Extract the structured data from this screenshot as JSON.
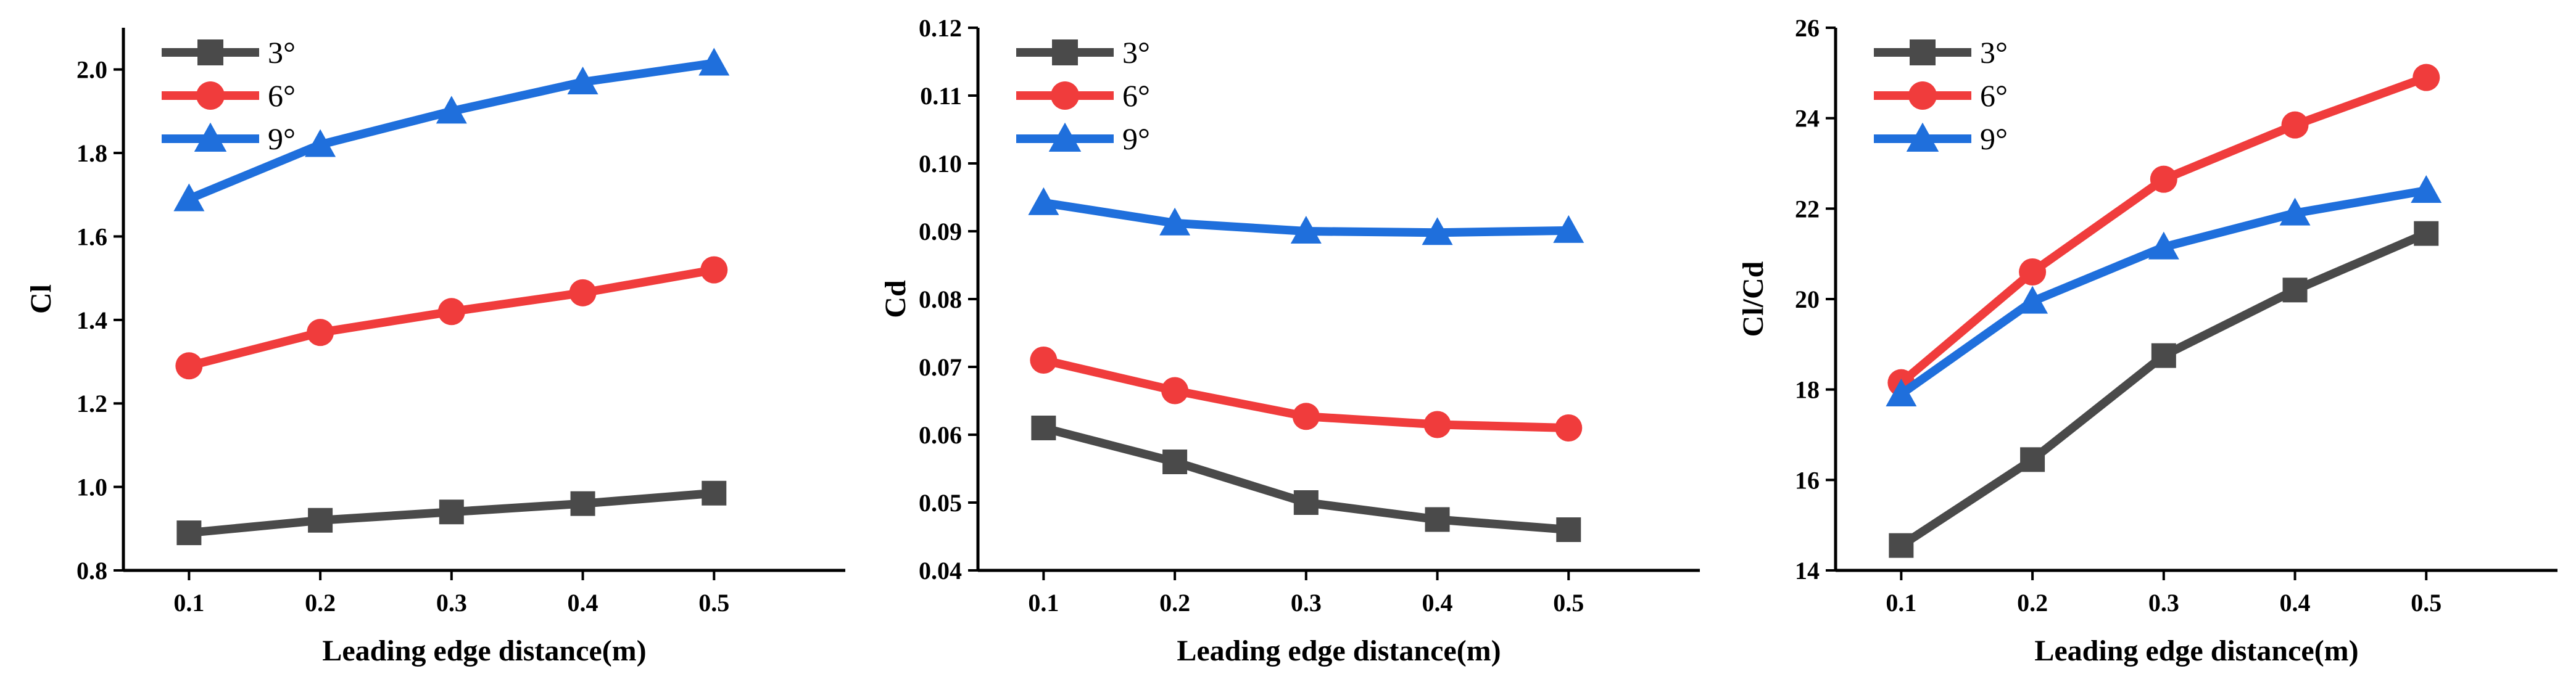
{
  "chart_data": [
    {
      "type": "line",
      "title": "",
      "xlabel": "Leading edge distance(m)",
      "ylabel": "Cl",
      "x": [
        0.1,
        0.2,
        0.3,
        0.4,
        0.5
      ],
      "xticks": [
        "0.1",
        "0.2",
        "0.3",
        "0.4",
        "0.5"
      ],
      "xlim": [
        0.05,
        0.6
      ],
      "ylim": [
        0.8,
        2.1
      ],
      "yticks": [
        "0.8",
        "1.0",
        "1.2",
        "1.4",
        "1.6",
        "1.8",
        "2.0"
      ],
      "ytick_values": [
        0.8,
        1.0,
        1.2,
        1.4,
        1.6,
        1.8,
        2.0
      ],
      "grid": false,
      "legend_position": "top-left",
      "series": [
        {
          "name": "3°",
          "color": "#4a4a4a",
          "marker": "square",
          "values": [
            0.89,
            0.92,
            0.94,
            0.96,
            0.985
          ]
        },
        {
          "name": "6°",
          "color": "#f03c3c",
          "marker": "circle",
          "values": [
            1.29,
            1.37,
            1.42,
            1.465,
            1.52
          ]
        },
        {
          "name": "9°",
          "color": "#1f6fdc",
          "marker": "triangle",
          "values": [
            1.69,
            1.82,
            1.9,
            1.97,
            2.015
          ]
        }
      ]
    },
    {
      "type": "line",
      "title": "",
      "xlabel": "Leading edge distance(m)",
      "ylabel": "Cd",
      "x": [
        0.1,
        0.2,
        0.3,
        0.4,
        0.5
      ],
      "xticks": [
        "0.1",
        "0.2",
        "0.3",
        "0.4",
        "0.5"
      ],
      "xlim": [
        0.05,
        0.6
      ],
      "ylim": [
        0.04,
        0.12
      ],
      "yticks": [
        "0.04",
        "0.05",
        "0.06",
        "0.07",
        "0.08",
        "0.09",
        "0.10",
        "0.11",
        "0.12"
      ],
      "ytick_values": [
        0.04,
        0.05,
        0.06,
        0.07,
        0.08,
        0.09,
        0.1,
        0.11,
        0.12
      ],
      "grid": false,
      "legend_position": "top-left",
      "series": [
        {
          "name": "3°",
          "color": "#4a4a4a",
          "marker": "square",
          "values": [
            0.061,
            0.056,
            0.05,
            0.0475,
            0.046
          ]
        },
        {
          "name": "6°",
          "color": "#f03c3c",
          "marker": "circle",
          "values": [
            0.071,
            0.0665,
            0.0627,
            0.0615,
            0.061
          ]
        },
        {
          "name": "9°",
          "color": "#1f6fdc",
          "marker": "triangle",
          "values": [
            0.0942,
            0.0912,
            0.09,
            0.0898,
            0.0901
          ]
        }
      ]
    },
    {
      "type": "line",
      "title": "",
      "xlabel": "Leading edge distance(m)",
      "ylabel": "Cl/Cd",
      "x": [
        0.1,
        0.2,
        0.3,
        0.4,
        0.5
      ],
      "xticks": [
        "0.1",
        "0.2",
        "0.3",
        "0.4",
        "0.5"
      ],
      "xlim": [
        0.05,
        0.6
      ],
      "ylim": [
        14,
        26
      ],
      "yticks": [
        "14",
        "16",
        "18",
        "20",
        "22",
        "24",
        "26"
      ],
      "ytick_values": [
        14,
        16,
        18,
        20,
        22,
        24,
        26
      ],
      "grid": false,
      "legend_position": "top-left",
      "series": [
        {
          "name": "3°",
          "color": "#4a4a4a",
          "marker": "square",
          "values": [
            14.55,
            16.45,
            18.75,
            20.2,
            21.45
          ]
        },
        {
          "name": "6°",
          "color": "#f03c3c",
          "marker": "circle",
          "values": [
            18.15,
            20.6,
            22.65,
            23.85,
            24.9
          ]
        },
        {
          "name": "9°",
          "color": "#1f6fdc",
          "marker": "triangle",
          "values": [
            17.9,
            19.95,
            21.15,
            21.9,
            22.4
          ]
        }
      ]
    }
  ]
}
